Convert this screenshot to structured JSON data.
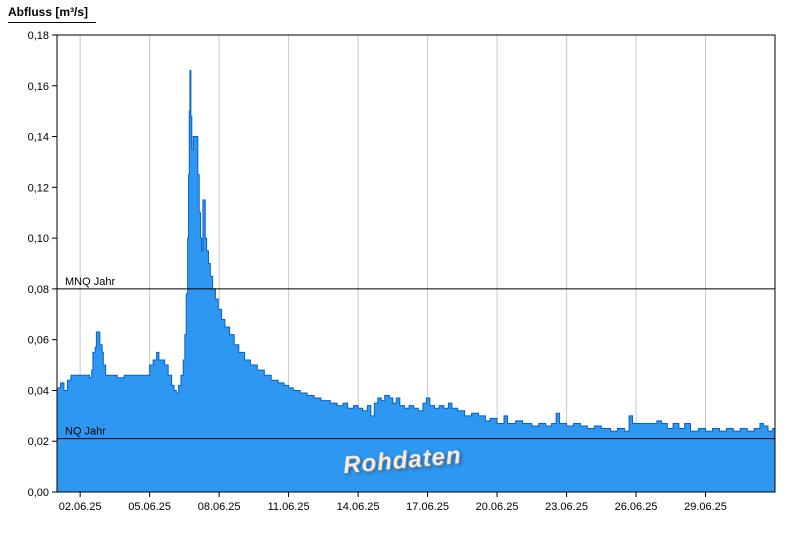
{
  "chart_data": {
    "type": "area",
    "title": "Abfluss [m³/s]",
    "watermark": "Rohdaten",
    "x_axis": {
      "unit": "days since 01.06.2025 00:00",
      "xlim": [
        0,
        31
      ],
      "ticks": [
        {
          "day": 1,
          "label": "02.06.25"
        },
        {
          "day": 4,
          "label": "05.06.25"
        },
        {
          "day": 7,
          "label": "08.06.25"
        },
        {
          "day": 10,
          "label": "11.06.25"
        },
        {
          "day": 13,
          "label": "14.06.25"
        },
        {
          "day": 16,
          "label": "17.06.25"
        },
        {
          "day": 19,
          "label": "20.06.25"
        },
        {
          "day": 22,
          "label": "23.06.25"
        },
        {
          "day": 25,
          "label": "26.06.25"
        },
        {
          "day": 28,
          "label": "29.06.25"
        }
      ]
    },
    "y_axis": {
      "unit": "m³/s",
      "ylim": [
        0,
        0.18
      ],
      "ticks": [
        {
          "value": 0.0,
          "label": "0,00"
        },
        {
          "value": 0.02,
          "label": "0,02"
        },
        {
          "value": 0.04,
          "label": "0,04"
        },
        {
          "value": 0.06,
          "label": "0,06"
        },
        {
          "value": 0.08,
          "label": "0,08"
        },
        {
          "value": 0.1,
          "label": "0,10"
        },
        {
          "value": 0.12,
          "label": "0,12"
        },
        {
          "value": 0.14,
          "label": "0,14"
        },
        {
          "value": 0.16,
          "label": "0,16"
        },
        {
          "value": 0.18,
          "label": "0,18"
        }
      ]
    },
    "reference_lines": [
      {
        "name": "MNQ Jahr",
        "value": 0.08
      },
      {
        "name": "NQ Jahr",
        "value": 0.021
      }
    ],
    "colors": {
      "area_fill": "#2E97F2",
      "area_line": "#0A60C0",
      "reference_line": "#000000",
      "grid": "#c9c9c9",
      "axis": "#000000"
    },
    "series": [
      {
        "name": "Abfluss Rohdaten",
        "interpolation": "step-after",
        "points": [
          [
            0.0,
            0.041
          ],
          [
            0.15,
            0.043
          ],
          [
            0.3,
            0.04
          ],
          [
            0.45,
            0.044
          ],
          [
            0.6,
            0.046
          ],
          [
            1.4,
            0.045
          ],
          [
            1.5,
            0.048
          ],
          [
            1.55,
            0.055
          ],
          [
            1.65,
            0.057
          ],
          [
            1.7,
            0.063
          ],
          [
            1.85,
            0.058
          ],
          [
            1.95,
            0.055
          ],
          [
            2.0,
            0.05
          ],
          [
            2.1,
            0.046
          ],
          [
            2.6,
            0.045
          ],
          [
            2.9,
            0.046
          ],
          [
            4.0,
            0.05
          ],
          [
            4.15,
            0.052
          ],
          [
            4.3,
            0.055
          ],
          [
            4.4,
            0.052
          ],
          [
            4.65,
            0.05
          ],
          [
            4.8,
            0.046
          ],
          [
            4.95,
            0.042
          ],
          [
            5.05,
            0.04
          ],
          [
            5.15,
            0.039
          ],
          [
            5.25,
            0.042
          ],
          [
            5.35,
            0.046
          ],
          [
            5.45,
            0.052
          ],
          [
            5.52,
            0.062
          ],
          [
            5.58,
            0.078
          ],
          [
            5.64,
            0.1
          ],
          [
            5.68,
            0.125
          ],
          [
            5.71,
            0.15
          ],
          [
            5.74,
            0.166
          ],
          [
            5.78,
            0.148
          ],
          [
            5.82,
            0.135
          ],
          [
            5.88,
            0.14
          ],
          [
            6.08,
            0.125
          ],
          [
            6.14,
            0.11
          ],
          [
            6.2,
            0.1
          ],
          [
            6.25,
            0.095
          ],
          [
            6.3,
            0.115
          ],
          [
            6.4,
            0.1
          ],
          [
            6.46,
            0.095
          ],
          [
            6.54,
            0.09
          ],
          [
            6.62,
            0.085
          ],
          [
            6.72,
            0.08
          ],
          [
            6.84,
            0.076
          ],
          [
            6.96,
            0.072
          ],
          [
            7.1,
            0.068
          ],
          [
            7.25,
            0.065
          ],
          [
            7.45,
            0.062
          ],
          [
            7.65,
            0.058
          ],
          [
            7.85,
            0.055
          ],
          [
            8.1,
            0.052
          ],
          [
            8.35,
            0.05
          ],
          [
            8.65,
            0.048
          ],
          [
            8.95,
            0.046
          ],
          [
            9.25,
            0.044
          ],
          [
            9.55,
            0.043
          ],
          [
            9.8,
            0.042
          ],
          [
            10.0,
            0.041
          ],
          [
            10.2,
            0.04
          ],
          [
            10.5,
            0.039
          ],
          [
            10.8,
            0.038
          ],
          [
            11.1,
            0.037
          ],
          [
            11.4,
            0.036
          ],
          [
            11.8,
            0.035
          ],
          [
            12.1,
            0.034
          ],
          [
            12.35,
            0.035
          ],
          [
            12.55,
            0.033
          ],
          [
            12.8,
            0.034
          ],
          [
            13.0,
            0.033
          ],
          [
            13.2,
            0.032
          ],
          [
            13.4,
            0.034
          ],
          [
            13.55,
            0.03
          ],
          [
            13.7,
            0.035
          ],
          [
            13.85,
            0.037
          ],
          [
            14.0,
            0.036
          ],
          [
            14.15,
            0.038
          ],
          [
            14.35,
            0.037
          ],
          [
            14.5,
            0.035
          ],
          [
            14.65,
            0.037
          ],
          [
            14.8,
            0.034
          ],
          [
            15.0,
            0.033
          ],
          [
            15.2,
            0.034
          ],
          [
            15.4,
            0.033
          ],
          [
            15.6,
            0.032
          ],
          [
            15.8,
            0.035
          ],
          [
            15.95,
            0.037
          ],
          [
            16.1,
            0.034
          ],
          [
            16.3,
            0.033
          ],
          [
            16.5,
            0.034
          ],
          [
            16.7,
            0.033
          ],
          [
            16.9,
            0.035
          ],
          [
            17.05,
            0.033
          ],
          [
            17.3,
            0.032
          ],
          [
            17.6,
            0.03
          ],
          [
            17.9,
            0.031
          ],
          [
            18.2,
            0.03
          ],
          [
            18.5,
            0.028
          ],
          [
            18.7,
            0.029
          ],
          [
            19.0,
            0.027
          ],
          [
            19.3,
            0.03
          ],
          [
            19.45,
            0.027
          ],
          [
            19.8,
            0.028
          ],
          [
            20.1,
            0.027
          ],
          [
            20.5,
            0.026
          ],
          [
            20.8,
            0.027
          ],
          [
            21.1,
            0.026
          ],
          [
            21.35,
            0.027
          ],
          [
            21.55,
            0.031
          ],
          [
            21.7,
            0.027
          ],
          [
            22.0,
            0.026
          ],
          [
            22.3,
            0.027
          ],
          [
            22.6,
            0.026
          ],
          [
            22.9,
            0.025
          ],
          [
            23.2,
            0.026
          ],
          [
            23.5,
            0.025
          ],
          [
            23.9,
            0.024
          ],
          [
            24.2,
            0.025
          ],
          [
            24.5,
            0.024
          ],
          [
            24.7,
            0.03
          ],
          [
            24.85,
            0.027
          ],
          [
            25.6,
            0.027
          ],
          [
            25.9,
            0.028
          ],
          [
            26.1,
            0.027
          ],
          [
            26.35,
            0.025
          ],
          [
            26.6,
            0.027
          ],
          [
            26.85,
            0.025
          ],
          [
            27.1,
            0.027
          ],
          [
            27.35,
            0.024
          ],
          [
            27.7,
            0.025
          ],
          [
            28.0,
            0.024
          ],
          [
            28.3,
            0.025
          ],
          [
            28.6,
            0.024
          ],
          [
            28.9,
            0.025
          ],
          [
            29.2,
            0.024
          ],
          [
            29.5,
            0.025
          ],
          [
            29.8,
            0.024
          ],
          [
            30.1,
            0.025
          ],
          [
            30.35,
            0.027
          ],
          [
            30.5,
            0.026
          ],
          [
            30.7,
            0.024
          ],
          [
            30.9,
            0.025
          ]
        ]
      }
    ]
  }
}
